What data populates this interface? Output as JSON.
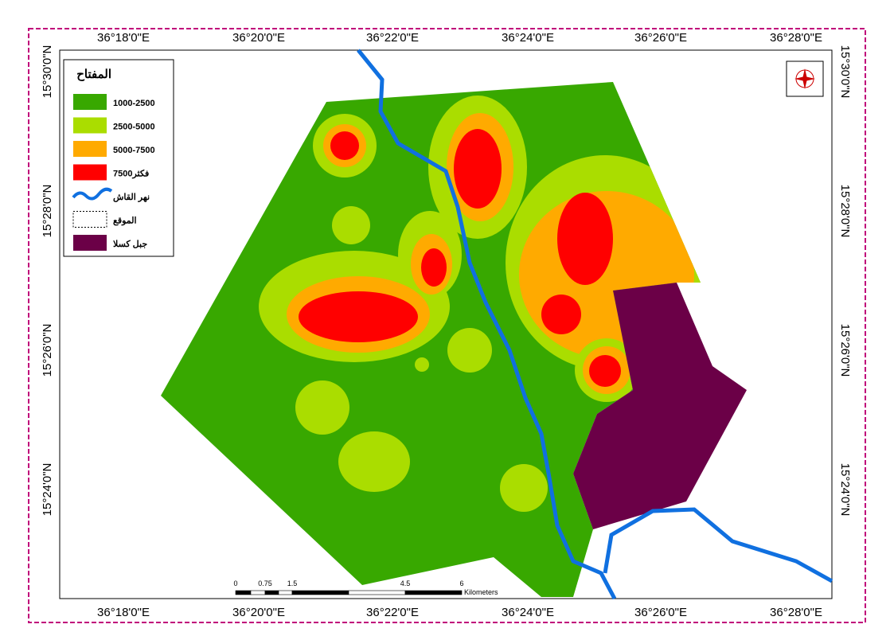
{
  "map": {
    "axes": {
      "top": [
        "36°18'0\"E",
        "36°20'0\"E",
        "36°22'0\"E",
        "36°24'0\"E",
        "36°26'0\"E",
        "36°28'0\"E"
      ],
      "bottom": [
        "36°18'0\"E",
        "36°20'0\"E",
        "36°22'0\"E",
        "36°24'0\"E",
        "36°26'0\"E",
        "36°28'0\"E"
      ],
      "left": [
        "15°30'0\"N",
        "15°28'0\"N",
        "15°26'0\"N",
        "15°24'0\"N"
      ],
      "right": [
        "15°30'0\"N",
        "15°28'0\"N",
        "15°26'0\"N",
        "15°24'0\"N"
      ]
    },
    "legend": {
      "title": "المفتاح",
      "items": [
        "1000-2500",
        "2500-5000",
        "5000-7500",
        "7500فكثر",
        "نهر القاش",
        "الموقع",
        "جبل كسلا"
      ]
    },
    "scale_bar": {
      "labels": [
        "0",
        "0.75",
        "1.5",
        "4.5",
        "6"
      ],
      "unit": "Kilometers"
    }
  }
}
